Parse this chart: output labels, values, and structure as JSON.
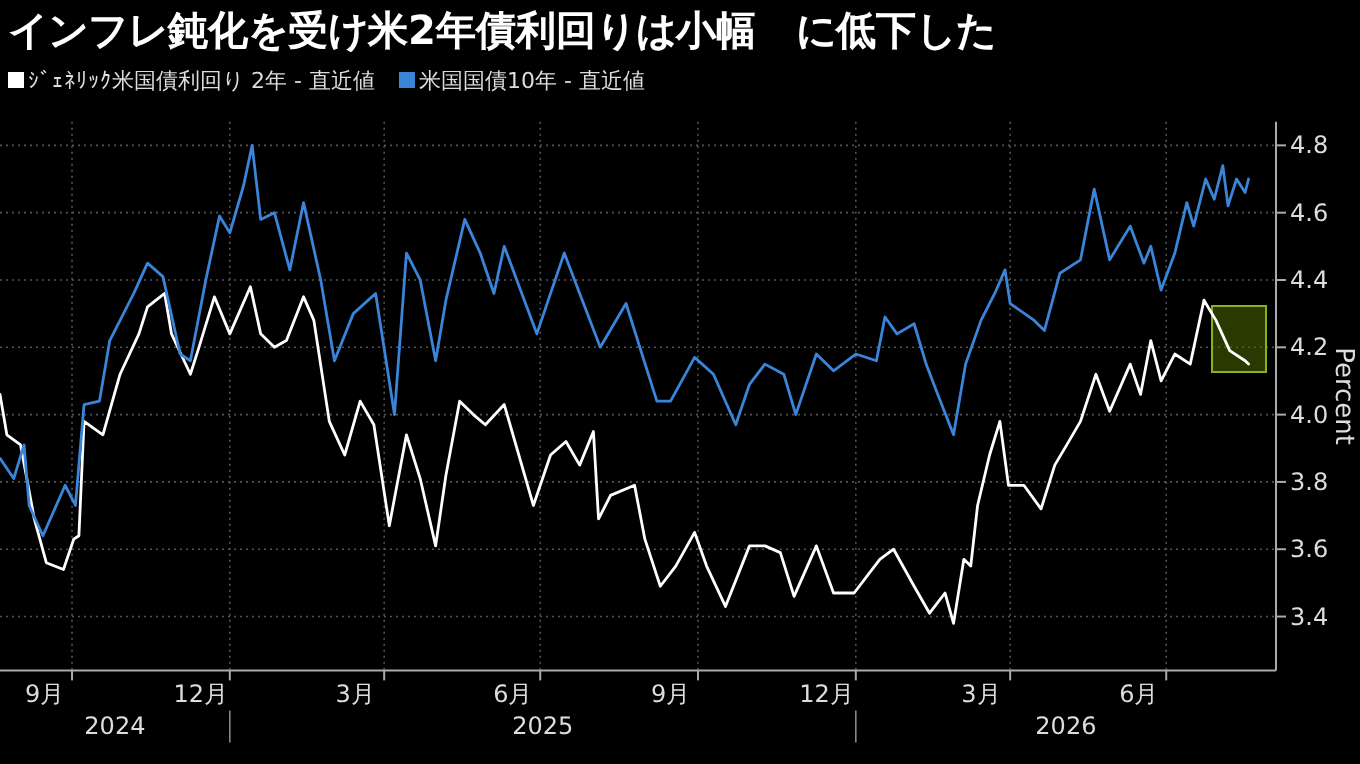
{
  "chart_data": {
    "type": "line",
    "title": "インフレ鈍化を受け米2年債利回りは小幅　に低下した",
    "ylabel": "Percent",
    "legend": "top left",
    "grid": true,
    "marker": "none",
    "line_style": "solid",
    "xlim": [
      "2024-08-20",
      "2026-09-03"
    ],
    "ylim": [
      3.24,
      4.87
    ],
    "yticks": [
      3.4,
      3.6,
      3.8,
      {
        "value": 4,
        "label": "4.0"
      },
      4.2,
      4.4,
      4.6,
      4.8
    ],
    "xticks": [
      {
        "value": "2024-09-15",
        "label": "9月"
      },
      {
        "value": "2024-10-01",
        "label": null
      },
      {
        "value": "2024-12-15",
        "label": "12月"
      },
      {
        "value": "2025-01-01",
        "label": null
      },
      {
        "value": "2025-03-15",
        "label": "3月"
      },
      {
        "value": "2025-04-01",
        "label": null
      },
      {
        "value": "2025-06-15",
        "label": "6月"
      },
      {
        "value": "2025-07-01",
        "label": null
      },
      {
        "value": "2025-09-15",
        "label": "9月"
      },
      {
        "value": "2025-10-01",
        "label": null
      },
      {
        "value": "2025-12-15",
        "label": "12月"
      },
      {
        "value": "2026-01-01",
        "label": null
      },
      {
        "value": "2026-03-15",
        "label": "3月"
      },
      {
        "value": "2026-04-01",
        "label": null
      },
      {
        "value": "2026-06-15",
        "label": "6月"
      },
      {
        "value": "2026-07-01",
        "label": null
      }
    ],
    "annotations": [
      "2024",
      "2025",
      "2026"
    ],
    "series": [
      {
        "name": "ｼﾞｪﾈﾘｯｸ米国債利回り 2年 - 直近値",
        "color": "#ffffff",
        "x": [
          "2024-08-20",
          "2024-08-24",
          "2024-09-01",
          "2024-09-09",
          "2024-09-16",
          "2024-09-26",
          "2024-10-02",
          "2024-10-05",
          "2024-10-08",
          "2024-10-19",
          "2024-10-29",
          "2024-11-09",
          "2024-11-14",
          "2024-11-24",
          "2024-11-28",
          "2024-12-09",
          "2024-12-14",
          "2024-12-23",
          "2025-01-01",
          "2025-01-13",
          "2025-01-19",
          "2025-01-27",
          "2025-02-03",
          "2025-02-13",
          "2025-02-19",
          "2025-02-28",
          "2025-03-09",
          "2025-03-18",
          "2025-03-26",
          "2025-04-04",
          "2025-04-14",
          "2025-04-22",
          "2025-05-01",
          "2025-05-07",
          "2025-05-15",
          "2025-05-23",
          "2025-05-30",
          "2025-06-10",
          "2025-06-27",
          "2025-07-07",
          "2025-07-16",
          "2025-07-24",
          "2025-08-01",
          "2025-08-04",
          "2025-08-11",
          "2025-08-25",
          "2025-08-31",
          "2025-09-09",
          "2025-09-18",
          "2025-09-29",
          "2025-10-06",
          "2025-10-17",
          "2025-10-31",
          "2025-11-09",
          "2025-11-18",
          "2025-11-26",
          "2025-12-09",
          "2025-12-19",
          "2025-12-31",
          "2026-01-15",
          "2026-01-23",
          "2026-02-04",
          "2026-02-13",
          "2026-02-22",
          "2026-02-27",
          "2026-03-05",
          "2026-03-09",
          "2026-03-13",
          "2026-03-20",
          "2026-03-26",
          "2026-03-31",
          "2026-04-09",
          "2026-04-19",
          "2026-04-27",
          "2026-05-04",
          "2026-05-12",
          "2026-05-21",
          "2026-05-29",
          "2026-06-10",
          "2026-06-16",
          "2026-06-22",
          "2026-06-28",
          "2026-07-06",
          "2026-07-15",
          "2026-07-23",
          "2026-07-30",
          "2026-08-07",
          "2026-08-16",
          "2026-08-18"
        ],
        "values": [
          4.06,
          3.94,
          3.91,
          3.69,
          3.56,
          3.54,
          3.63,
          3.64,
          3.98,
          3.94,
          4.12,
          4.24,
          4.32,
          4.36,
          4.24,
          4.12,
          4.2,
          4.35,
          4.24,
          4.38,
          4.24,
          4.2,
          4.22,
          4.35,
          4.28,
          3.98,
          3.88,
          4.04,
          3.97,
          3.67,
          3.94,
          3.81,
          3.61,
          3.82,
          4.04,
          4.0,
          3.97,
          4.03,
          3.73,
          3.88,
          3.92,
          3.85,
          3.95,
          3.69,
          3.76,
          3.79,
          3.63,
          3.49,
          3.55,
          3.65,
          3.55,
          3.43,
          3.61,
          3.61,
          3.59,
          3.46,
          3.61,
          3.47,
          3.47,
          3.57,
          3.6,
          3.49,
          3.41,
          3.47,
          3.38,
          3.57,
          3.55,
          3.73,
          3.88,
          3.98,
          3.79,
          3.79,
          3.72,
          3.85,
          3.91,
          3.98,
          4.12,
          4.01,
          4.15,
          4.06,
          4.22,
          4.1,
          4.18,
          4.15,
          4.34,
          4.28,
          4.19,
          4.16,
          4.15
        ]
      },
      {
        "name": "米国国債10年 - 直近値",
        "color": "#3a85d8",
        "x": [
          "2024-08-20",
          "2024-08-28",
          "2024-09-03",
          "2024-09-06",
          "2024-09-14",
          "2024-09-27",
          "2024-10-03",
          "2024-10-08",
          "2024-10-17",
          "2024-10-23",
          "2024-11-06",
          "2024-11-14",
          "2024-11-23",
          "2024-12-03",
          "2024-12-09",
          "2024-12-18",
          "2024-12-26",
          "2025-01-01",
          "2025-01-09",
          "2025-01-14",
          "2025-01-19",
          "2025-01-27",
          "2025-02-05",
          "2025-02-13",
          "2025-02-23",
          "2025-03-03",
          "2025-03-14",
          "2025-03-27",
          "2025-04-07",
          "2025-04-14",
          "2025-04-22",
          "2025-05-01",
          "2025-05-07",
          "2025-05-18",
          "2025-05-27",
          "2025-06-04",
          "2025-06-10",
          "2025-06-29",
          "2025-07-15",
          "2025-07-24",
          "2025-08-05",
          "2025-08-20",
          "2025-09-07",
          "2025-09-15",
          "2025-09-29",
          "2025-10-10",
          "2025-10-23",
          "2025-10-31",
          "2025-11-09",
          "2025-11-20",
          "2025-11-27",
          "2025-12-09",
          "2025-12-19",
          "2026-01-01",
          "2026-01-13",
          "2026-01-18",
          "2026-01-25",
          "2026-02-04",
          "2026-02-11",
          "2026-02-17",
          "2026-02-27",
          "2026-03-06",
          "2026-03-15",
          "2026-03-23",
          "2026-03-29",
          "2026-04-01",
          "2026-04-15",
          "2026-04-21",
          "2026-04-30",
          "2026-05-12",
          "2026-05-20",
          "2026-05-29",
          "2026-06-10",
          "2026-06-18",
          "2026-06-22",
          "2026-06-28",
          "2026-07-06",
          "2026-07-13",
          "2026-07-17",
          "2026-07-24",
          "2026-07-29",
          "2026-08-03",
          "2026-08-06",
          "2026-08-11",
          "2026-08-16",
          "2026-08-18"
        ],
        "values": [
          3.87,
          3.81,
          3.91,
          3.73,
          3.64,
          3.79,
          3.73,
          4.03,
          4.04,
          4.22,
          4.36,
          4.45,
          4.41,
          4.18,
          4.16,
          4.4,
          4.59,
          4.54,
          4.68,
          4.8,
          4.58,
          4.6,
          4.43,
          4.63,
          4.4,
          4.16,
          4.3,
          4.36,
          4.0,
          4.48,
          4.4,
          4.16,
          4.34,
          4.58,
          4.48,
          4.36,
          4.5,
          4.24,
          4.48,
          4.36,
          4.2,
          4.33,
          4.04,
          4.04,
          4.17,
          4.12,
          3.97,
          4.09,
          4.15,
          4.12,
          4.0,
          4.18,
          4.13,
          4.18,
          4.16,
          4.29,
          4.24,
          4.27,
          4.15,
          4.07,
          3.94,
          4.15,
          4.28,
          4.36,
          4.43,
          4.33,
          4.28,
          4.25,
          4.42,
          4.46,
          4.67,
          4.46,
          4.56,
          4.45,
          4.5,
          4.37,
          4.48,
          4.63,
          4.56,
          4.7,
          4.64,
          4.74,
          4.62,
          4.7,
          4.66,
          4.7
        ]
      }
    ]
  }
}
